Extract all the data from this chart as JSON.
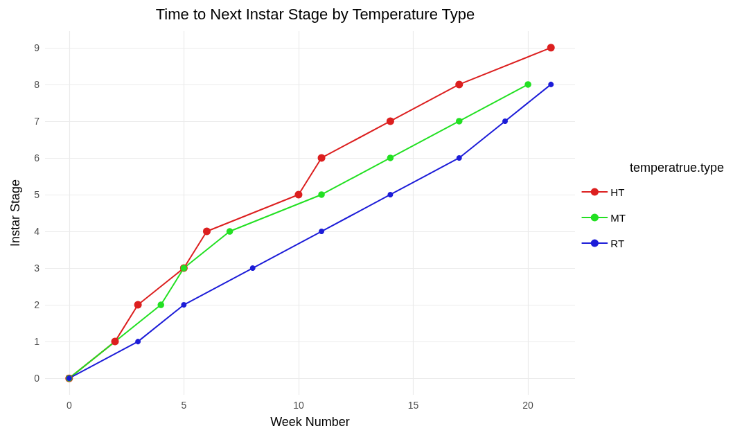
{
  "chart_data": {
    "type": "line",
    "title": "Time to Next Instar Stage by Temperature Type",
    "xlabel": "Week Number",
    "ylabel": "Instar Stage",
    "legend_title": "temperatrue.type",
    "legend": "right",
    "grid": true,
    "marker": "circle",
    "line_style": "solid",
    "xlim": [
      -1.05,
      22.05
    ],
    "xticks": [
      0,
      5,
      10,
      15,
      20
    ],
    "ylim": [
      -0.45,
      9.45
    ],
    "yticks": [
      0,
      1,
      2,
      3,
      4,
      5,
      6,
      7,
      8,
      9
    ],
    "series": [
      {
        "name": "HT",
        "color": "#dc1f1f",
        "x": [
          0,
          2,
          3,
          5,
          6,
          10,
          11,
          14,
          17,
          21
        ],
        "values": [
          0,
          1,
          2,
          3,
          4,
          5,
          6,
          7,
          8,
          9
        ]
      },
      {
        "name": "MT",
        "color": "#22e022",
        "x": [
          0,
          4,
          5,
          7,
          11,
          14,
          17,
          20
        ],
        "values": [
          0,
          2,
          3,
          4,
          5,
          6,
          7,
          8
        ]
      },
      {
        "name": "RT",
        "color": "#1c1cd8",
        "x": [
          0,
          3,
          5,
          8,
          11,
          14,
          17,
          19,
          21
        ],
        "values": [
          0,
          1,
          2,
          3,
          4,
          5,
          6,
          7,
          8
        ]
      }
    ]
  }
}
